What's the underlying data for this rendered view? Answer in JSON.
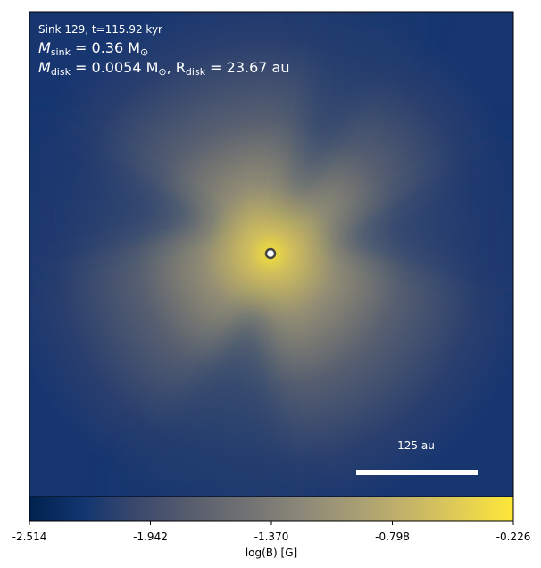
{
  "chart_data": {
    "type": "image",
    "annotations": [
      {
        "text": "Sink 129, t=115.92 kyr"
      },
      {
        "parts": [
          {
            "text": "M"
          },
          {
            "sub": "sink"
          },
          {
            "text": " = 0.36 M"
          },
          {
            "sub": "⊙"
          }
        ]
      },
      {
        "parts": [
          {
            "text": "M"
          },
          {
            "sub": "disk"
          },
          {
            "text": " = 0.0054 M"
          },
          {
            "sub": "⊙"
          },
          {
            "text": ", R"
          },
          {
            "sub": "disk"
          },
          {
            "text": " = 23.67 au"
          }
        ]
      }
    ],
    "scale_bar_label": "125 au",
    "colorbar": {
      "label": "log(B) [G]",
      "lim": [
        -2.514,
        -0.226
      ],
      "ticks": [
        -2.514,
        -1.942,
        {
          "value": -1.37,
          "label": "-1.370"
        },
        -0.798,
        -0.226
      ],
      "colormap": [
        "#00224e",
        "#123570",
        "#3b496c",
        "#575d6d",
        "#707173",
        "#8a8678",
        "#a59c74",
        "#c3b369",
        "#e1cc55",
        "#fee838"
      ]
    }
  }
}
